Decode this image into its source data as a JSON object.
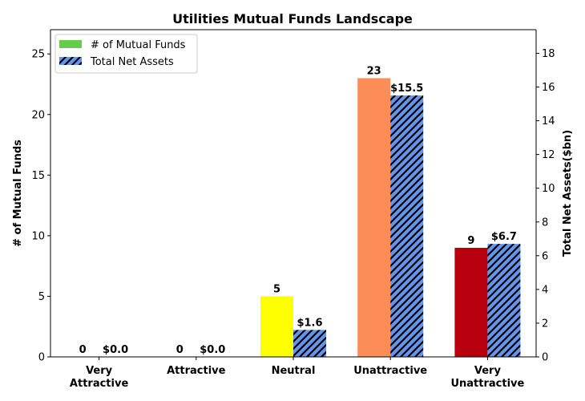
{
  "chart_data": {
    "type": "bar",
    "title": "Utilities Mutual Funds Landscape",
    "categories": [
      [
        "Very",
        "Attractive"
      ],
      [
        "Attractive"
      ],
      [
        "Neutral"
      ],
      [
        "Unattractive"
      ],
      [
        "Very",
        "Unattractive"
      ]
    ],
    "series": [
      {
        "name": "# of Mutual Funds",
        "axis": "left",
        "values": [
          0,
          0,
          5,
          23,
          9
        ],
        "labels": [
          "0",
          "0",
          "5",
          "23",
          "9"
        ],
        "colors": [
          "#1a9641",
          "#a6d96a",
          "#ffff00",
          "#fc8d59",
          "#b8000f"
        ],
        "legend_color": "#66cc4d"
      },
      {
        "name": "Total Net Assets",
        "axis": "right",
        "values": [
          0.0,
          0.0,
          1.6,
          15.5,
          6.7
        ],
        "labels": [
          "$0.0",
          "$0.0",
          "$1.6",
          "$15.5",
          "$6.7"
        ],
        "color": "#6495ed",
        "hatch": "diagonal"
      }
    ],
    "ylabel_left": "# of Mutual Funds",
    "ylabel_right": "Total Net Assets($bn)",
    "ylim_left": [
      0,
      27
    ],
    "ylim_right": [
      0,
      19.4
    ],
    "yticks_left": [
      "0",
      "5",
      "10",
      "15",
      "20",
      "25"
    ],
    "yticks_right": [
      "0",
      "2",
      "4",
      "6",
      "8",
      "10",
      "12",
      "14",
      "16",
      "18"
    ],
    "legend_position": "top-left",
    "grid": false
  }
}
